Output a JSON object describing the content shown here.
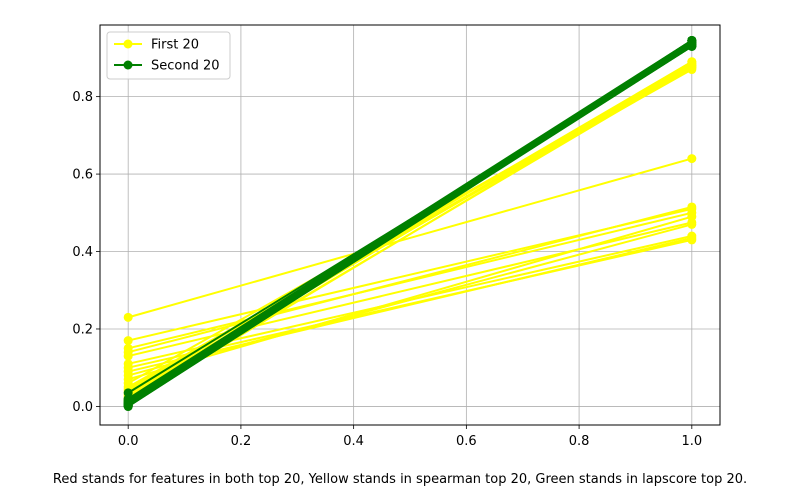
{
  "chart_data": {
    "type": "line",
    "caption": "Red stands for features in both top 20, Yellow stands in spearman top 20, Green stands in lapscore top 20.",
    "xlim": [
      -0.05,
      1.05
    ],
    "ylim": [
      -0.048,
      0.985
    ],
    "xticks": [
      0.0,
      0.2,
      0.4,
      0.6,
      0.8,
      1.0
    ],
    "xtick_labels": [
      "0.0",
      "0.2",
      "0.4",
      "0.6",
      "0.8",
      "1.0"
    ],
    "yticks": [
      0.0,
      0.2,
      0.4,
      0.6,
      0.8
    ],
    "ytick_labels": [
      "0.0",
      "0.2",
      "0.4",
      "0.6",
      "0.8"
    ],
    "grid": true,
    "legend_position": "top-left",
    "series": [
      {
        "name": "First 20",
        "color": "#ffff00",
        "pairs": [
          [
            0.23,
            0.64
          ],
          [
            0.17,
            0.51
          ],
          [
            0.15,
            0.5
          ],
          [
            0.14,
            0.515
          ],
          [
            0.13,
            0.475
          ],
          [
            0.11,
            0.44
          ],
          [
            0.1,
            0.43
          ],
          [
            0.09,
            0.435
          ],
          [
            0.08,
            0.47
          ],
          [
            0.07,
            0.49
          ],
          [
            0.06,
            0.88
          ],
          [
            0.05,
            0.87
          ],
          [
            0.045,
            0.885
          ],
          [
            0.04,
            0.89
          ],
          [
            0.035,
            0.875
          ],
          [
            0.03,
            0.88
          ],
          [
            0.025,
            0.885
          ],
          [
            0.02,
            0.89
          ],
          [
            0.015,
            0.875
          ],
          [
            0.01,
            0.88
          ]
        ]
      },
      {
        "name": "Second 20",
        "color": "#008000",
        "pairs": [
          [
            0.035,
            0.93
          ],
          [
            0.02,
            0.945
          ],
          [
            0.018,
            0.94
          ],
          [
            0.016,
            0.935
          ],
          [
            0.014,
            0.93
          ],
          [
            0.012,
            0.94
          ],
          [
            0.01,
            0.945
          ],
          [
            0.009,
            0.935
          ],
          [
            0.008,
            0.93
          ],
          [
            0.007,
            0.94
          ],
          [
            0.006,
            0.945
          ],
          [
            0.005,
            0.935
          ],
          [
            0.004,
            0.93
          ],
          [
            0.003,
            0.94
          ],
          [
            0.002,
            0.945
          ],
          [
            0.002,
            0.935
          ],
          [
            0.001,
            0.93
          ],
          [
            0.001,
            0.94
          ],
          [
            0.0,
            0.945
          ],
          [
            0.0,
            0.935
          ]
        ]
      }
    ]
  }
}
